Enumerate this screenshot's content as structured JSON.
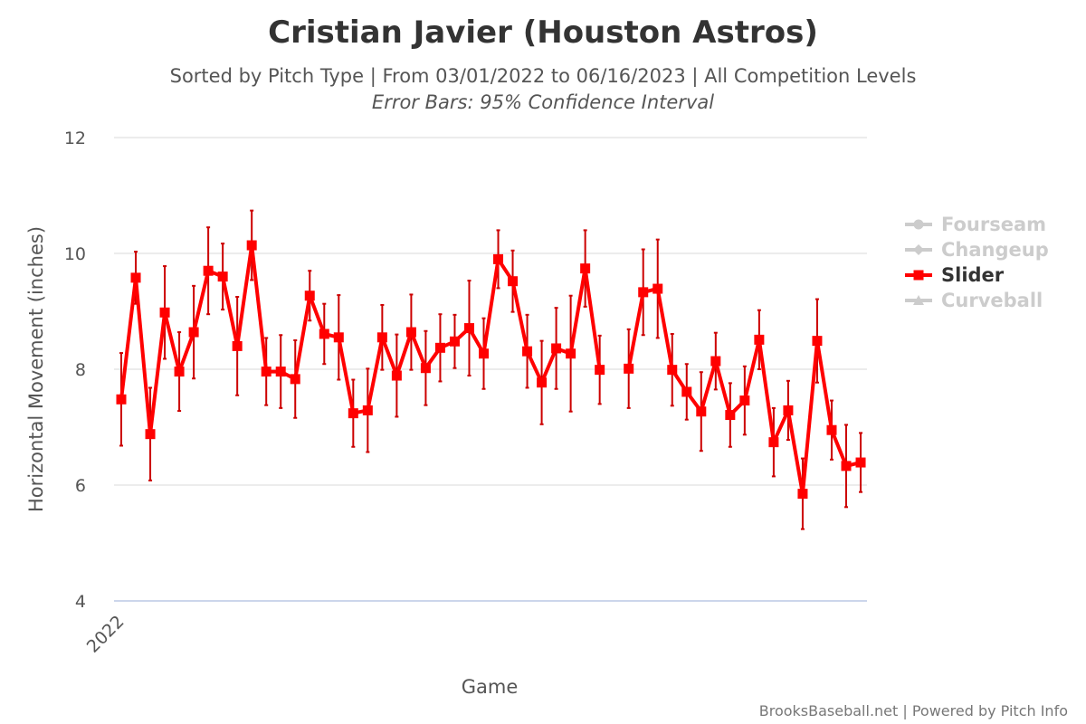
{
  "chart_data": {
    "type": "line",
    "title": "Cristian Javier (Houston Astros)",
    "subtitle": "Sorted by Pitch Type | From 03/01/2022 to 06/16/2023 | All Competition Levels",
    "subtitle2": "Error Bars: 95% Confidence Interval",
    "xlabel": "Game",
    "ylabel": "Horizontal Movement (inches)",
    "x_tick_labels": [
      "2022"
    ],
    "ylim": [
      4,
      12
    ],
    "y_ticks": [
      "4",
      "6",
      "8",
      "10",
      "12"
    ],
    "grid": true,
    "legend_position": "right",
    "legend": [
      {
        "name": "Fourseam",
        "active": false,
        "marker": "circle"
      },
      {
        "name": "Changeup",
        "active": false,
        "marker": "diamond"
      },
      {
        "name": "Slider",
        "active": true,
        "marker": "square"
      },
      {
        "name": "Curveball",
        "active": false,
        "marker": "triangle"
      }
    ],
    "series": [
      {
        "name": "Slider",
        "color": "#ff0000",
        "error_color": "#cc0000",
        "points": [
          {
            "x": 1,
            "y": 7.48,
            "lo": 6.68,
            "hi": 8.28
          },
          {
            "x": 2,
            "y": 9.58,
            "lo": 9.13,
            "hi": 10.03
          },
          {
            "x": 3,
            "y": 6.88,
            "lo": 6.08,
            "hi": 7.68
          },
          {
            "x": 4,
            "y": 8.98,
            "lo": 8.18,
            "hi": 9.78
          },
          {
            "x": 5,
            "y": 7.96,
            "lo": 7.28,
            "hi": 8.64
          },
          {
            "x": 6,
            "y": 8.64,
            "lo": 7.84,
            "hi": 9.44
          },
          {
            "x": 7,
            "y": 9.7,
            "lo": 8.95,
            "hi": 10.45
          },
          {
            "x": 8,
            "y": 9.6,
            "lo": 9.03,
            "hi": 10.17
          },
          {
            "x": 9,
            "y": 8.4,
            "lo": 7.55,
            "hi": 9.25
          },
          {
            "x": 10,
            "y": 10.14,
            "lo": 9.54,
            "hi": 10.74
          },
          {
            "x": 11,
            "y": 7.96,
            "lo": 7.38,
            "hi": 8.54
          },
          {
            "x": 12,
            "y": 7.96,
            "lo": 7.33,
            "hi": 8.59
          },
          {
            "x": 13,
            "y": 7.83,
            "lo": 7.16,
            "hi": 8.5
          },
          {
            "x": 14,
            "y": 9.27,
            "lo": 8.84,
            "hi": 9.7
          },
          {
            "x": 15,
            "y": 8.61,
            "lo": 8.09,
            "hi": 9.13
          },
          {
            "x": 16,
            "y": 8.55,
            "lo": 7.82,
            "hi": 9.28
          },
          {
            "x": 17,
            "y": 7.24,
            "lo": 6.66,
            "hi": 7.82
          },
          {
            "x": 18,
            "y": 7.29,
            "lo": 6.57,
            "hi": 8.01
          },
          {
            "x": 19,
            "y": 8.55,
            "lo": 7.99,
            "hi": 9.11
          },
          {
            "x": 20,
            "y": 7.89,
            "lo": 7.18,
            "hi": 8.6
          },
          {
            "x": 21,
            "y": 8.64,
            "lo": 7.99,
            "hi": 9.29
          },
          {
            "x": 22,
            "y": 8.02,
            "lo": 7.38,
            "hi": 8.66
          },
          {
            "x": 23,
            "y": 8.37,
            "lo": 7.79,
            "hi": 8.95
          },
          {
            "x": 24,
            "y": 8.48,
            "lo": 8.02,
            "hi": 8.94
          },
          {
            "x": 25,
            "y": 8.71,
            "lo": 7.89,
            "hi": 9.53
          },
          {
            "x": 26,
            "y": 8.27,
            "lo": 7.66,
            "hi": 8.88
          },
          {
            "x": 27,
            "y": 9.9,
            "lo": 9.4,
            "hi": 10.4
          },
          {
            "x": 28,
            "y": 9.52,
            "lo": 8.99,
            "hi": 10.05
          },
          {
            "x": 29,
            "y": 8.31,
            "lo": 7.68,
            "hi": 8.94
          },
          {
            "x": 30,
            "y": 7.77,
            "lo": 7.05,
            "hi": 8.49
          },
          {
            "x": 31,
            "y": 8.36,
            "lo": 7.66,
            "hi": 9.06
          },
          {
            "x": 32,
            "y": 8.27,
            "lo": 7.27,
            "hi": 9.27
          },
          {
            "x": 33,
            "y": 9.74,
            "lo": 9.08,
            "hi": 10.4
          },
          {
            "x": 34,
            "y": 7.99,
            "lo": 7.4,
            "hi": 8.58
          },
          {
            "x": 35,
            "y": null,
            "lo": null,
            "hi": null
          },
          {
            "x": 36,
            "y": 8.01,
            "lo": 7.33,
            "hi": 8.69
          },
          {
            "x": 37,
            "y": 9.33,
            "lo": 8.59,
            "hi": 10.07
          },
          {
            "x": 38,
            "y": 9.39,
            "lo": 8.54,
            "hi": 10.24
          },
          {
            "x": 39,
            "y": 7.99,
            "lo": 7.37,
            "hi": 8.61
          },
          {
            "x": 40,
            "y": 7.61,
            "lo": 7.13,
            "hi": 8.09
          },
          {
            "x": 41,
            "y": 7.27,
            "lo": 6.59,
            "hi": 7.95
          },
          {
            "x": 42,
            "y": 8.14,
            "lo": 7.65,
            "hi": 8.63
          },
          {
            "x": 43,
            "y": 7.21,
            "lo": 6.66,
            "hi": 7.76
          },
          {
            "x": 44,
            "y": 7.46,
            "lo": 6.87,
            "hi": 8.05
          },
          {
            "x": 45,
            "y": 8.51,
            "lo": 8.0,
            "hi": 9.02
          },
          {
            "x": 46,
            "y": 6.74,
            "lo": 6.15,
            "hi": 7.33
          },
          {
            "x": 47,
            "y": 7.29,
            "lo": 6.78,
            "hi": 7.8
          },
          {
            "x": 48,
            "y": 5.85,
            "lo": 5.24,
            "hi": 6.46
          },
          {
            "x": 49,
            "y": 8.49,
            "lo": 7.77,
            "hi": 9.21
          },
          {
            "x": 50,
            "y": 6.95,
            "lo": 6.44,
            "hi": 7.46
          },
          {
            "x": 51,
            "y": 6.33,
            "lo": 5.62,
            "hi": 7.04
          },
          {
            "x": 52,
            "y": 6.39,
            "lo": 5.88,
            "hi": 6.9
          }
        ]
      }
    ]
  },
  "credit": "BrooksBaseball.net | Powered by Pitch Info",
  "colors": {
    "inactive_legend": "#cccccc",
    "active_legend_text": "#333333",
    "grid": "#e6e6e6",
    "axis_line": "#ccd6eb"
  }
}
